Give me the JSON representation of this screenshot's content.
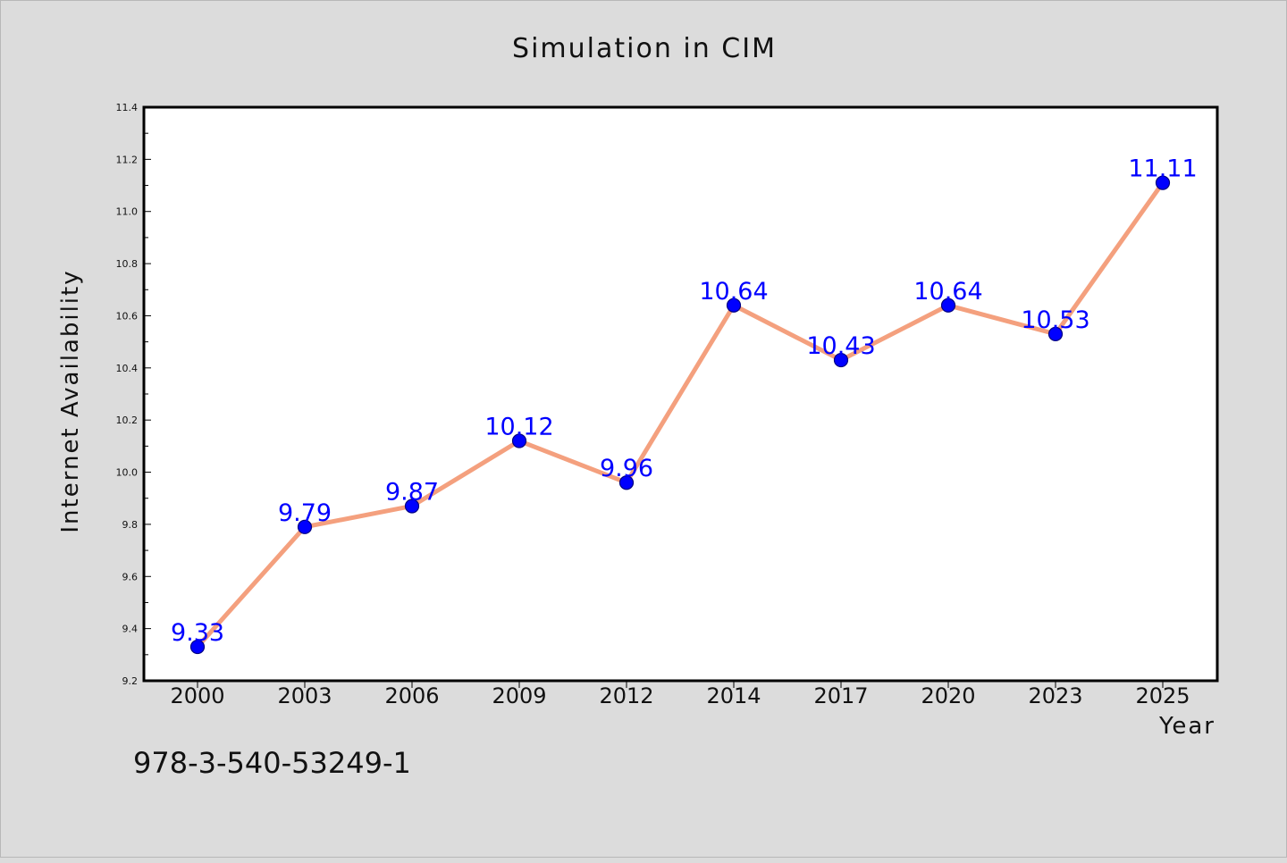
{
  "chart_data": {
    "type": "line",
    "title": "Simulation in CIM",
    "xlabel": "Year",
    "ylabel": "Internet Availability",
    "categories": [
      "2000",
      "2003",
      "2006",
      "2009",
      "2012",
      "2014",
      "2017",
      "2020",
      "2023",
      "2025"
    ],
    "series": [
      {
        "values": [
          9.33,
          9.79,
          9.87,
          10.12,
          9.96,
          10.64,
          10.43,
          10.64,
          10.53,
          11.11
        ],
        "data_labels": [
          "9.33",
          "9.79",
          "9.87",
          "10.12",
          "9.96",
          "10.64",
          "10.43",
          "10.64",
          "10.53",
          "11.11"
        ]
      }
    ],
    "ylim": [
      9.2,
      11.4
    ],
    "y_ticks": [
      9.2,
      9.4,
      9.6,
      9.8,
      10.0,
      10.2,
      10.4,
      10.6,
      10.8,
      11.0,
      11.2,
      11.4
    ],
    "y_tick_labels": [
      "9.2",
      "9.4",
      "9.6",
      "9.8",
      "10.0",
      "10.2",
      "10.4",
      "10.6",
      "10.8",
      "11.0",
      "11.2",
      "11.4"
    ],
    "grid": false,
    "legend": "none",
    "colors": {
      "line": "#f4a07e",
      "marker": "#0000ff",
      "marker_edge": "#000080",
      "data_label": "#0000ff",
      "plot_background": "#ffffff",
      "page_background": "#dcdcdc",
      "axes_frame": "#000000"
    }
  },
  "footer": {
    "note": "978-3-540-53249-1"
  }
}
